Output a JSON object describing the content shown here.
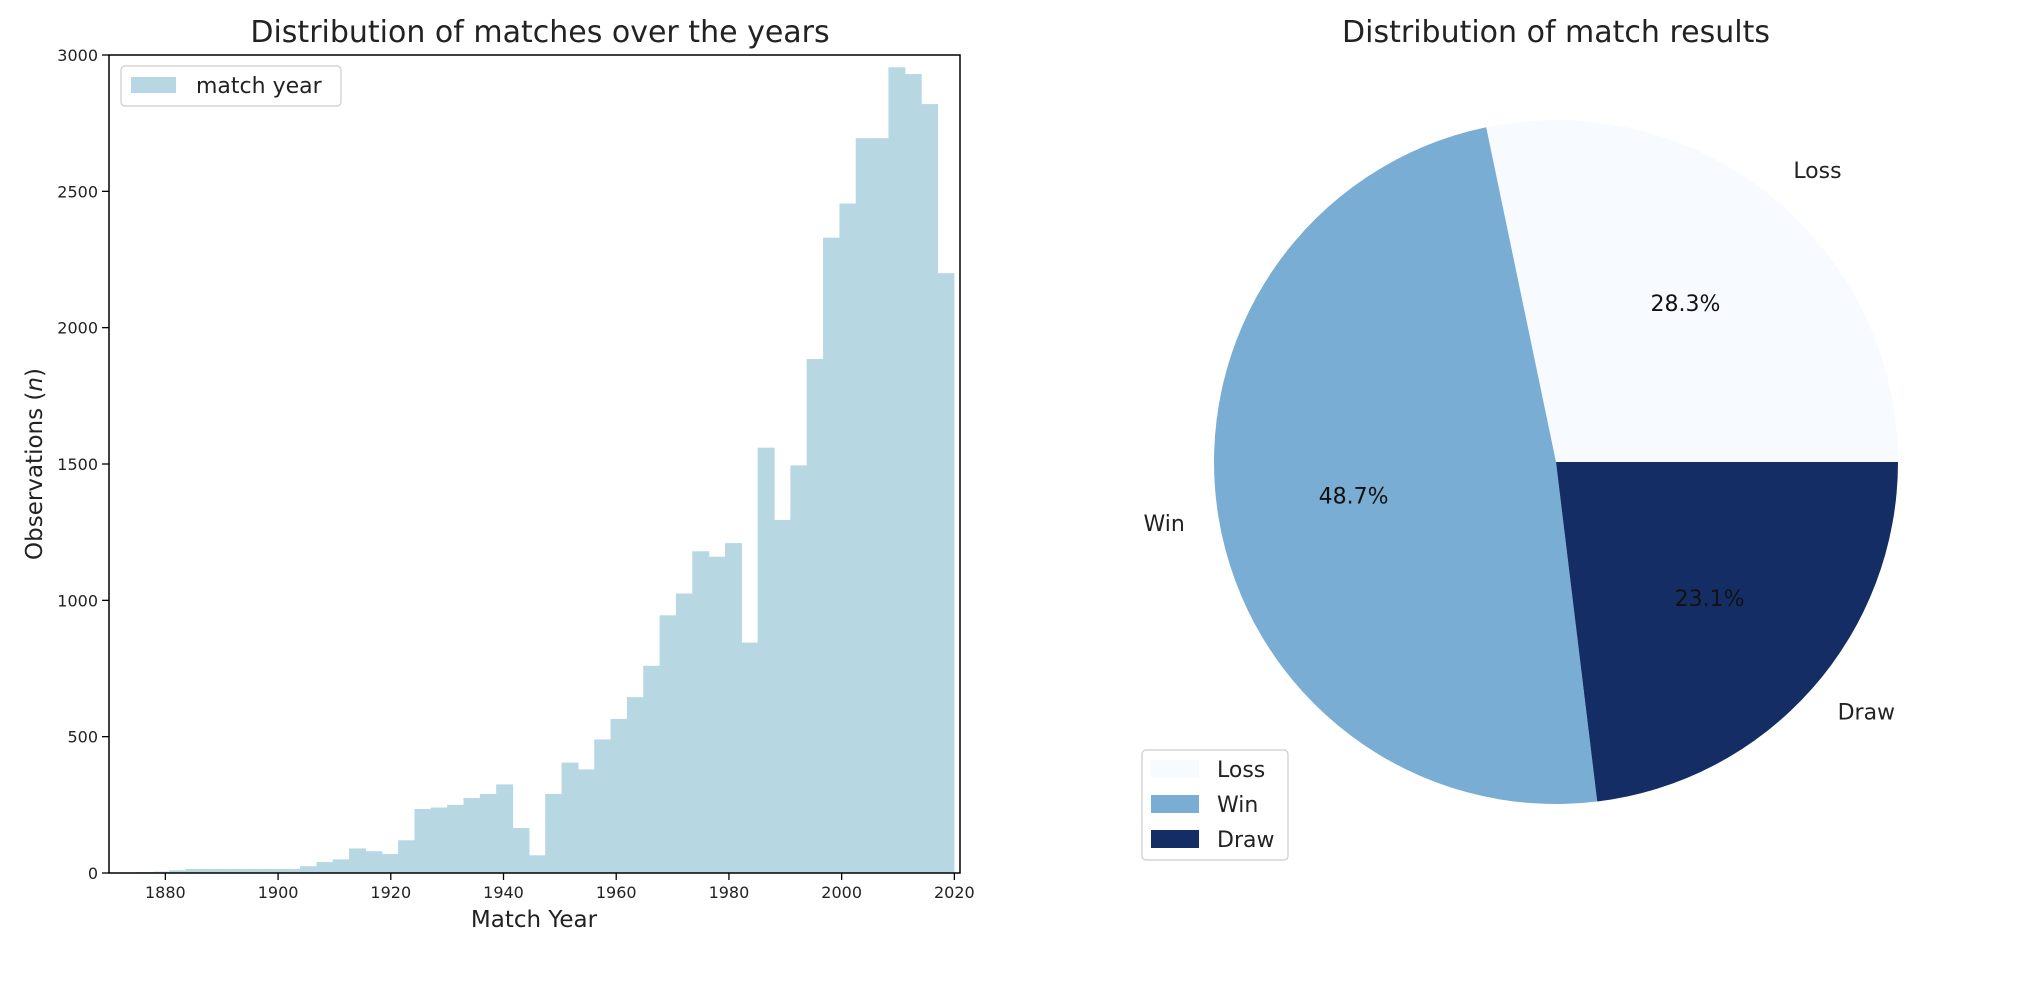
{
  "chart_data": [
    {
      "type": "bar",
      "title": "Distribution of matches over the years",
      "xlabel": "Match Year",
      "ylabel": "Observations (n)",
      "ylabel_main": "Observations (",
      "ylabel_italic": "n",
      "ylabel_end": ")",
      "xlim": [
        1870,
        2021
      ],
      "ylim": [
        0,
        3000
      ],
      "xticks": [
        "1880",
        "1900",
        "1920",
        "1940",
        "1960",
        "1980",
        "2000",
        "2020"
      ],
      "yticks": [
        "0",
        "500",
        "1000",
        "1500",
        "2000",
        "2500",
        "3000"
      ],
      "legend": {
        "position": "top-left",
        "label": "match year"
      },
      "bar_color": "#b7d8e3",
      "bins": {
        "start": 1872,
        "width": 2.9
      },
      "series": [
        {
          "name": "match year",
          "values": [
            2,
            3,
            5,
            10,
            15,
            15,
            15,
            15,
            15,
            15,
            15,
            25,
            40,
            50,
            90,
            80,
            70,
            120,
            235,
            240,
            250,
            275,
            290,
            325,
            165,
            65,
            290,
            405,
            380,
            490,
            565,
            645,
            760,
            945,
            1025,
            1180,
            1160,
            1210,
            845,
            1560,
            1295,
            1495,
            1885,
            2330,
            2455,
            2695,
            2695,
            2955,
            2930,
            2820,
            2200
          ]
        }
      ]
    },
    {
      "type": "pie",
      "title": "Distribution of match results",
      "labels": [
        "Loss",
        "Win",
        "Draw"
      ],
      "values": [
        28.3,
        48.7,
        23.1
      ],
      "value_labels": [
        "28.3%",
        "48.7%",
        "23.1%"
      ],
      "colors": [
        "#f7fbff",
        "#7aadd3",
        "#142e65"
      ],
      "legend": {
        "position": "lower-left",
        "labels": [
          "Loss",
          "Win",
          "Draw"
        ]
      }
    }
  ]
}
